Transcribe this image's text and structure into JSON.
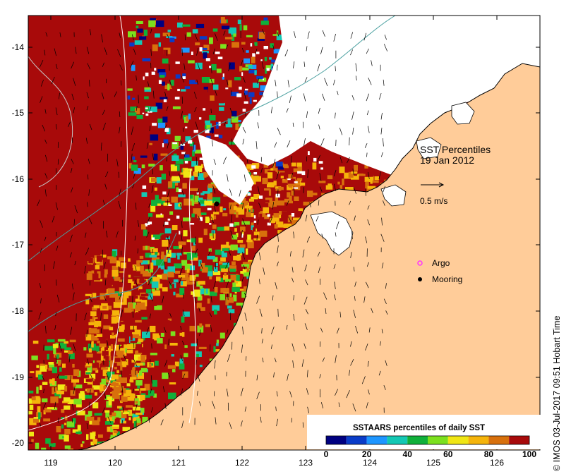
{
  "title": {
    "line1": "SST Percentiles",
    "line2": "19 Jan 2012"
  },
  "vector_scale_label": "0.5 m/s",
  "legend_markers": [
    {
      "label": "Argo",
      "color": "#ff33ff",
      "symbol": "circle-open"
    },
    {
      "label": "Mooring",
      "color": "#000000",
      "symbol": "circle-filled"
    }
  ],
  "colorbar": {
    "title": "SSTAARS percentiles of daily SST",
    "ticks": [
      "0",
      "20",
      "40",
      "60",
      "80",
      "100"
    ],
    "colors": [
      "#000080",
      "#0a3cc8",
      "#1e96ff",
      "#14c8b4",
      "#10b03a",
      "#7ce01e",
      "#f0e614",
      "#f5b40a",
      "#d8700c",
      "#a80a0a"
    ]
  },
  "axes": {
    "lon_ticks": [
      "119",
      "120",
      "121",
      "122",
      "123",
      "124",
      "125",
      "126"
    ],
    "lat_ticks": [
      "-14",
      "-15",
      "-16",
      "-17",
      "-18",
      "-19",
      "-20"
    ]
  },
  "colors": {
    "land": "#ffcc99",
    "no_data": "#ffffff",
    "coastline": "#000000",
    "hot": "#a80a0a"
  },
  "credit": "© IMOS 03-Jul-2017 09:51 Hobart Time"
}
